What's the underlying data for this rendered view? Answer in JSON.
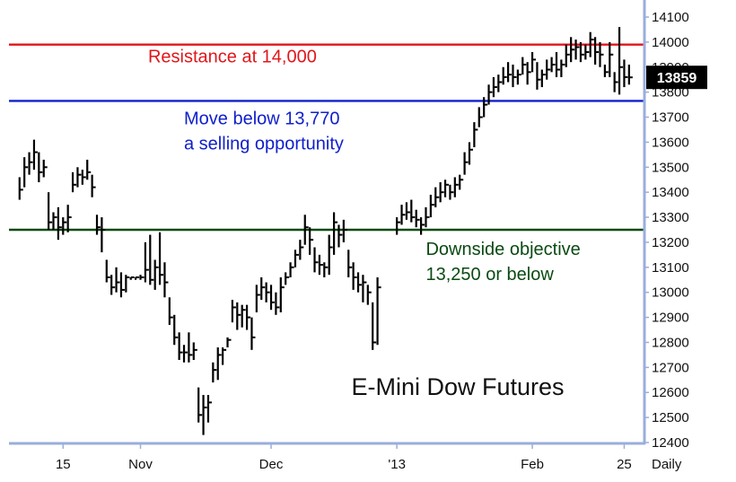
{
  "chart_data": {
    "type": "bar",
    "subtype": "ohlc",
    "title": "E-Mini Dow Futures",
    "period_label": "Daily",
    "ylim": [
      12400,
      14100
    ],
    "yticks": [
      12400,
      12500,
      12600,
      12700,
      12800,
      12900,
      13000,
      13100,
      13200,
      13300,
      13400,
      13500,
      13600,
      13700,
      13800,
      13900,
      14000,
      14100
    ],
    "x_range": [
      0,
      131
    ],
    "x_ticks": [
      {
        "label": "15",
        "index": 11
      },
      {
        "label": "Nov",
        "index": 27
      },
      {
        "label": "Dec",
        "index": 54
      },
      {
        "label": "'13",
        "index": 80
      },
      {
        "label": "Feb",
        "index": 108
      },
      {
        "label": "25",
        "index": 127
      }
    ],
    "last_price": {
      "label": "13859",
      "value": 13859,
      "color": "#000000"
    },
    "lines": [
      {
        "value": 13990,
        "color": "#e0161b",
        "text": [
          "Resistance at 14,000"
        ],
        "text_anchor_index": 46
      },
      {
        "value": 13765,
        "color": "#1020cc",
        "text": [
          "Move below 13,770",
          "a selling opportunity"
        ],
        "text_anchor_index": 36
      },
      {
        "value": 13250,
        "color": "#0a4a12",
        "text": [
          "Downside objective",
          "13,250 or below"
        ],
        "text_anchor_index": 86
      }
    ],
    "bars": [
      [
        2,
        13460,
        13370,
        13410
      ],
      [
        3,
        13540,
        13420,
        13500
      ],
      [
        4,
        13560,
        13470,
        13520
      ],
      [
        5,
        13610,
        13490,
        13560
      ],
      [
        6,
        13560,
        13440,
        13480
      ],
      [
        7,
        13530,
        13460,
        13500
      ],
      [
        8,
        13400,
        13250,
        13280
      ],
      [
        9,
        13320,
        13250,
        13300
      ],
      [
        10,
        13340,
        13210,
        13260
      ],
      [
        11,
        13300,
        13230,
        13280
      ],
      [
        12,
        13350,
        13240,
        13300
      ],
      [
        13,
        13480,
        13400,
        13430
      ],
      [
        14,
        13500,
        13420,
        13470
      ],
      [
        15,
        13490,
        13430,
        13460
      ],
      [
        16,
        13530,
        13450,
        13480
      ],
      [
        17,
        13470,
        13380,
        13420
      ],
      [
        18,
        13310,
        13230,
        13260
      ],
      [
        19,
        13300,
        13160,
        13250
      ],
      [
        20,
        13130,
        13040,
        13060
      ],
      [
        21,
        13070,
        12990,
        13020
      ],
      [
        22,
        13100,
        13000,
        13040
      ],
      [
        23,
        13080,
        12980,
        13010
      ],
      [
        24,
        13070,
        13000,
        13060
      ],
      [
        25,
        13060,
        13050,
        13060
      ],
      [
        26,
        13060,
        13050,
        13060
      ],
      [
        27,
        13070,
        13050,
        13060
      ],
      [
        28,
        13200,
        13040,
        13090
      ],
      [
        29,
        13230,
        13030,
        13050
      ],
      [
        30,
        13130,
        13010,
        13100
      ],
      [
        31,
        13240,
        13030,
        13070
      ],
      [
        32,
        13120,
        12980,
        13040
      ],
      [
        33,
        12980,
        12870,
        12900
      ],
      [
        34,
        12910,
        12790,
        12820
      ],
      [
        35,
        12840,
        12730,
        12760
      ],
      [
        36,
        12790,
        12720,
        12760
      ],
      [
        37,
        12840,
        12720,
        12750
      ],
      [
        38,
        12800,
        12730,
        12770
      ],
      [
        39,
        12620,
        12480,
        12510
      ],
      [
        40,
        12590,
        12430,
        12540
      ],
      [
        41,
        12590,
        12480,
        12560
      ],
      [
        42,
        12720,
        12640,
        12690
      ],
      [
        43,
        12780,
        12650,
        12750
      ],
      [
        44,
        12780,
        12710,
        12770
      ],
      [
        45,
        12820,
        12780,
        12810
      ],
      [
        46,
        12970,
        12880,
        12940
      ],
      [
        47,
        12960,
        12850,
        12910
      ],
      [
        48,
        12950,
        12860,
        12930
      ],
      [
        49,
        12950,
        12850,
        12900
      ],
      [
        50,
        12900,
        12770,
        12820
      ],
      [
        51,
        13030,
        12920,
        12990
      ],
      [
        52,
        13060,
        12970,
        13020
      ],
      [
        53,
        13040,
        12960,
        13000
      ],
      [
        54,
        13030,
        12930,
        12960
      ],
      [
        55,
        13000,
        12910,
        12940
      ],
      [
        56,
        13060,
        12920,
        13020
      ],
      [
        57,
        13080,
        13030,
        13060
      ],
      [
        58,
        13120,
        13060,
        13100
      ],
      [
        59,
        13170,
        13100,
        13150
      ],
      [
        60,
        13210,
        13130,
        13180
      ],
      [
        61,
        13310,
        13190,
        13260
      ],
      [
        62,
        13260,
        13150,
        13210
      ],
      [
        63,
        13180,
        13080,
        13120
      ],
      [
        64,
        13150,
        13070,
        13110
      ],
      [
        65,
        13120,
        13060,
        13100
      ],
      [
        66,
        13230,
        13070,
        13180
      ],
      [
        67,
        13320,
        13150,
        13280
      ],
      [
        68,
        13270,
        13180,
        13230
      ],
      [
        69,
        13290,
        13200,
        13250
      ],
      [
        70,
        13170,
        13060,
        13100
      ],
      [
        71,
        13120,
        13010,
        13060
      ],
      [
        72,
        13080,
        13000,
        13030
      ],
      [
        73,
        13070,
        12960,
        13040
      ],
      [
        74,
        13030,
        12950,
        13000
      ],
      [
        75,
        12960,
        12770,
        12800
      ],
      [
        76,
        13060,
        12790,
        13020
      ],
      [
        80,
        13300,
        13230,
        13280
      ],
      [
        81,
        13350,
        13270,
        13310
      ],
      [
        82,
        13360,
        13290,
        13320
      ],
      [
        83,
        13370,
        13280,
        13300
      ],
      [
        84,
        13330,
        13260,
        13290
      ],
      [
        85,
        13300,
        13230,
        13270
      ],
      [
        86,
        13340,
        13260,
        13300
      ],
      [
        87,
        13390,
        13300,
        13350
      ],
      [
        88,
        13420,
        13340,
        13380
      ],
      [
        89,
        13440,
        13360,
        13400
      ],
      [
        90,
        13450,
        13380,
        13430
      ],
      [
        91,
        13430,
        13370,
        13400
      ],
      [
        92,
        13460,
        13380,
        13430
      ],
      [
        93,
        13470,
        13410,
        13450
      ],
      [
        94,
        13560,
        13470,
        13520
      ],
      [
        95,
        13600,
        13510,
        13570
      ],
      [
        96,
        13680,
        13580,
        13650
      ],
      [
        97,
        13740,
        13660,
        13700
      ],
      [
        98,
        13780,
        13700,
        13750
      ],
      [
        99,
        13830,
        13750,
        13800
      ],
      [
        100,
        13860,
        13780,
        13820
      ],
      [
        101,
        13870,
        13800,
        13840
      ],
      [
        102,
        13900,
        13830,
        13860
      ],
      [
        103,
        13920,
        13840,
        13870
      ],
      [
        104,
        13910,
        13820,
        13860
      ],
      [
        105,
        13890,
        13830,
        13870
      ],
      [
        106,
        13940,
        13870,
        13910
      ],
      [
        107,
        13920,
        13830,
        13880
      ],
      [
        108,
        13960,
        13880,
        13930
      ],
      [
        109,
        13920,
        13810,
        13850
      ],
      [
        110,
        13890,
        13820,
        13870
      ],
      [
        111,
        13930,
        13850,
        13890
      ],
      [
        112,
        13940,
        13880,
        13910
      ],
      [
        113,
        13960,
        13860,
        13890
      ],
      [
        114,
        13930,
        13860,
        13910
      ],
      [
        115,
        13990,
        13900,
        13950
      ],
      [
        116,
        14020,
        13920,
        13970
      ],
      [
        117,
        14010,
        13930,
        13980
      ],
      [
        118,
        14000,
        13920,
        13950
      ],
      [
        119,
        13990,
        13930,
        13960
      ],
      [
        120,
        14040,
        13940,
        14010
      ],
      [
        121,
        14020,
        13910,
        13960
      ],
      [
        122,
        14000,
        13900,
        13950
      ],
      [
        123,
        13910,
        13860,
        13880
      ],
      [
        124,
        14000,
        13860,
        13950
      ],
      [
        125,
        13880,
        13800,
        13840
      ],
      [
        126,
        14060,
        13790,
        13900
      ],
      [
        127,
        13930,
        13820,
        13860
      ],
      [
        128,
        13910,
        13830,
        13859
      ]
    ]
  },
  "colors": {
    "frame": "#9aaedc",
    "bars": "#000000",
    "text": "#111111"
  }
}
